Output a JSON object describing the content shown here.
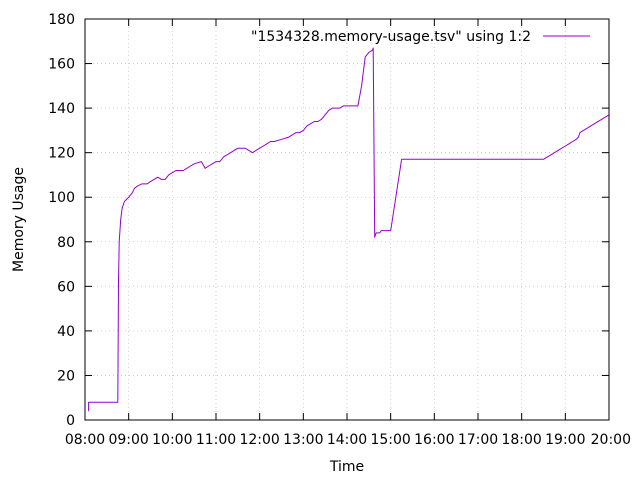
{
  "chart_data": {
    "type": "line",
    "xlabel": "Time",
    "ylabel": "Memory Usage",
    "xlim": [
      "08:00",
      "20:00"
    ],
    "ylim": [
      0,
      180
    ],
    "x_ticks": [
      "08:00",
      "09:00",
      "10:00",
      "11:00",
      "12:00",
      "13:00",
      "14:00",
      "15:00",
      "16:00",
      "17:00",
      "18:00",
      "19:00",
      "20:00"
    ],
    "y_ticks": [
      0,
      20,
      40,
      60,
      80,
      100,
      120,
      140,
      160,
      180
    ],
    "grid": true,
    "legend_position": "top-right",
    "series": [
      {
        "name": "\"1534328.memory-usage.tsv\" using 1:2",
        "color": "#9400d3",
        "x": [
          "08:05",
          "08:05",
          "08:06",
          "08:45",
          "08:46",
          "08:47",
          "08:49",
          "08:51",
          "08:54",
          "08:57",
          "09:00",
          "09:05",
          "09:08",
          "09:12",
          "09:18",
          "09:25",
          "09:30",
          "09:35",
          "09:40",
          "09:45",
          "09:50",
          "09:55",
          "10:00",
          "10:05",
          "10:10",
          "10:15",
          "10:20",
          "10:25",
          "10:30",
          "10:40",
          "10:45",
          "10:50",
          "10:55",
          "11:00",
          "11:05",
          "11:08",
          "11:10",
          "11:15",
          "11:20",
          "11:30",
          "11:40",
          "11:45",
          "11:50",
          "11:55",
          "12:00",
          "12:05",
          "12:10",
          "12:15",
          "12:20",
          "12:30",
          "12:40",
          "12:45",
          "12:50",
          "12:55",
          "13:00",
          "13:05",
          "13:10",
          "13:15",
          "13:20",
          "13:25",
          "13:30",
          "13:35",
          "13:40",
          "13:45",
          "13:50",
          "13:55",
          "14:00",
          "14:05",
          "14:10",
          "14:15",
          "14:20",
          "14:25",
          "14:30",
          "14:35",
          "14:36",
          "14:38",
          "14:40",
          "14:42",
          "14:44",
          "14:45",
          "14:45",
          "14:47",
          "15:00",
          "15:15",
          "15:30",
          "15:40",
          "15:42",
          "15:47",
          "15:48",
          "16:00",
          "16:30",
          "17:00",
          "17:30",
          "18:00",
          "18:30",
          "18:35",
          "18:40",
          "18:45",
          "18:50",
          "19:00",
          "19:05",
          "19:10",
          "19:15",
          "19:18",
          "19:20",
          "19:30",
          "19:40",
          "19:50",
          "20:00"
        ],
        "y": [
          4,
          8,
          8,
          8,
          62,
          80,
          90,
          95,
          98,
          99,
          100,
          102,
          104,
          105,
          106,
          106,
          107,
          108,
          109,
          108,
          108,
          110,
          111,
          112,
          112,
          112,
          113,
          114,
          115,
          116,
          113,
          114,
          115,
          116,
          116,
          117,
          118,
          119,
          120,
          122,
          122,
          121,
          120,
          121,
          122,
          123,
          124,
          125,
          125,
          126,
          127,
          128,
          129,
          129,
          130,
          132,
          133,
          134,
          134,
          135,
          137,
          139,
          140,
          140,
          140,
          141,
          141,
          141,
          141,
          141,
          150,
          163,
          165,
          166,
          167,
          82,
          84,
          84,
          84,
          84,
          84,
          85,
          85,
          117,
          117,
          117,
          117,
          117,
          117,
          117,
          117,
          117,
          117,
          117,
          117,
          118,
          119,
          120,
          121,
          123,
          124,
          125,
          126,
          127,
          129,
          131,
          133,
          135,
          137
        ]
      }
    ]
  }
}
